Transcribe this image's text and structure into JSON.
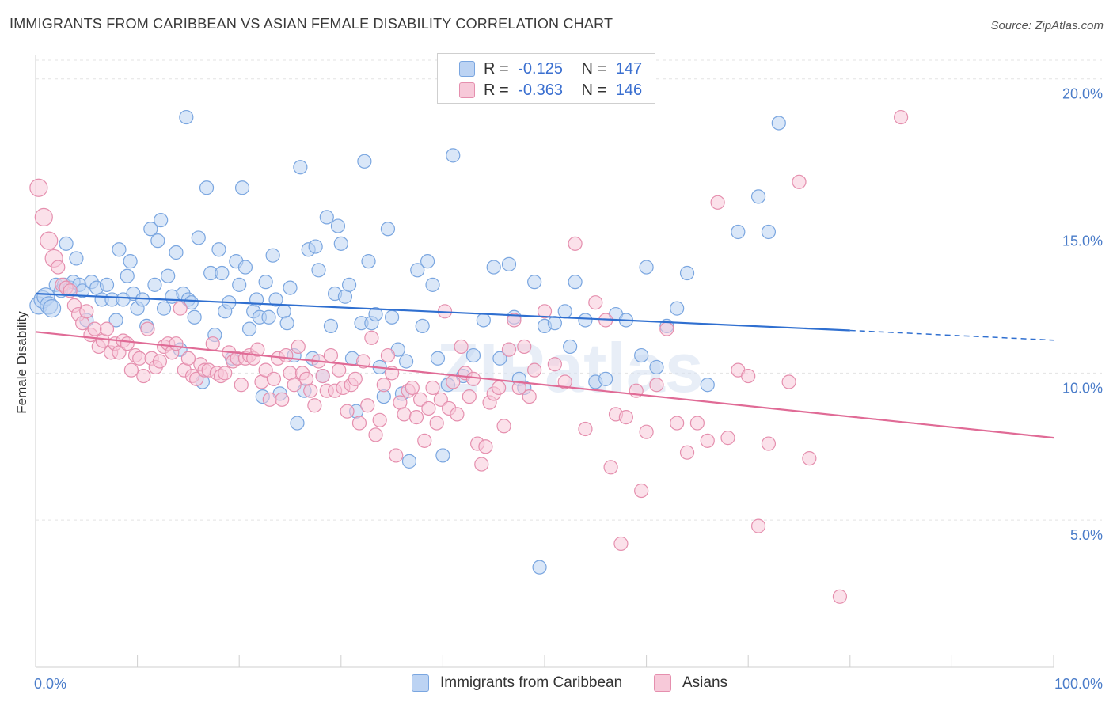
{
  "title": "IMMIGRANTS FROM CARIBBEAN VS ASIAN FEMALE DISABILITY CORRELATION CHART",
  "source": "Source: ZipAtlas.com",
  "watermark": "ZIPatlas",
  "legend": {
    "r_label": "R =",
    "n_label": "N =",
    "series": [
      {
        "name": "Immigrants from Caribbean",
        "r": "-0.125",
        "n": "147",
        "color": "#7aa6e0",
        "fill": "#bcd3f3",
        "line": "#2f6fd0"
      },
      {
        "name": "Asians",
        "r": "-0.363",
        "n": "146",
        "color": "#e58fae",
        "fill": "#f7c9d9",
        "line": "#e06b96"
      }
    ]
  },
  "chart_data": {
    "type": "scatter",
    "xlabel": "",
    "ylabel": "Female Disability",
    "xlim": [
      0,
      100
    ],
    "ylim": [
      0,
      20.8
    ],
    "x_tick_labels": [
      "0.0%",
      "100.0%"
    ],
    "y_ticks": [
      5,
      10,
      15,
      20
    ],
    "y_tick_labels": [
      "5.0%",
      "10.0%",
      "15.0%",
      "20.0%"
    ],
    "grid": true,
    "trendlines": [
      {
        "series": "Immigrants from Caribbean",
        "x0": 0,
        "y0": 12.7,
        "x1": 80,
        "y1": 11.45,
        "dash_from": 80,
        "x_end": 100,
        "y_end": 11.12
      },
      {
        "series": "Asians",
        "x0": 0,
        "y0": 11.4,
        "x1": 100,
        "y1": 7.8
      }
    ],
    "series": [
      {
        "name": "Immigrants from Caribbean",
        "points": [
          [
            0.3,
            12.3
          ],
          [
            0.7,
            12.5
          ],
          [
            1,
            12.6
          ],
          [
            1.3,
            12.3
          ],
          [
            1.6,
            12.2
          ],
          [
            2,
            13
          ],
          [
            2.5,
            12.8
          ],
          [
            2.8,
            13
          ],
          [
            3,
            14.4
          ],
          [
            3.4,
            12.9
          ],
          [
            3.7,
            13.1
          ],
          [
            4,
            13.9
          ],
          [
            4.3,
            13
          ],
          [
            4.6,
            12.8
          ],
          [
            5,
            11.8
          ],
          [
            5.5,
            13.1
          ],
          [
            6,
            12.9
          ],
          [
            6.5,
            12.5
          ],
          [
            7,
            13
          ],
          [
            7.5,
            12.5
          ],
          [
            7.9,
            11.8
          ],
          [
            8.2,
            14.2
          ],
          [
            8.6,
            12.5
          ],
          [
            9,
            13.3
          ],
          [
            9.3,
            13.8
          ],
          [
            9.6,
            12.7
          ],
          [
            10,
            12.2
          ],
          [
            10.5,
            12.5
          ],
          [
            10.9,
            11.6
          ],
          [
            11.3,
            14.9
          ],
          [
            11.7,
            13
          ],
          [
            12,
            14.5
          ],
          [
            12.3,
            15.2
          ],
          [
            12.6,
            12.2
          ],
          [
            13,
            13.3
          ],
          [
            13.4,
            12.6
          ],
          [
            13.8,
            14.1
          ],
          [
            14.2,
            10.8
          ],
          [
            14.5,
            12.7
          ],
          [
            14.8,
            18.7
          ],
          [
            15,
            12.5
          ],
          [
            15.3,
            12.4
          ],
          [
            15.6,
            11.9
          ],
          [
            16,
            14.6
          ],
          [
            16.4,
            9.7
          ],
          [
            16.8,
            16.3
          ],
          [
            17.2,
            13.4
          ],
          [
            17.6,
            11.3
          ],
          [
            18,
            14.2
          ],
          [
            18.3,
            13.4
          ],
          [
            18.6,
            12.1
          ],
          [
            19,
            12.4
          ],
          [
            19.3,
            10.5
          ],
          [
            19.7,
            13.8
          ],
          [
            20,
            13
          ],
          [
            20.3,
            16.3
          ],
          [
            20.6,
            13.6
          ],
          [
            21,
            11.5
          ],
          [
            21.4,
            12.1
          ],
          [
            21.7,
            12.5
          ],
          [
            22,
            11.9
          ],
          [
            22.3,
            9.2
          ],
          [
            22.6,
            13.1
          ],
          [
            22.9,
            11.9
          ],
          [
            23.3,
            14
          ],
          [
            23.6,
            12.5
          ],
          [
            24,
            9.3
          ],
          [
            24.4,
            12.1
          ],
          [
            24.7,
            11.7
          ],
          [
            25,
            12.9
          ],
          [
            25.4,
            10.6
          ],
          [
            25.7,
            8.3
          ],
          [
            26,
            17
          ],
          [
            26.4,
            9.4
          ],
          [
            26.8,
            14.2
          ],
          [
            27.2,
            10.5
          ],
          [
            27.5,
            14.3
          ],
          [
            27.8,
            13.5
          ],
          [
            28.2,
            9.9
          ],
          [
            28.6,
            15.3
          ],
          [
            29,
            11.6
          ],
          [
            29.4,
            12.7
          ],
          [
            29.7,
            15
          ],
          [
            30,
            14.4
          ],
          [
            30.4,
            12.6
          ],
          [
            30.8,
            13
          ],
          [
            31.1,
            10.5
          ],
          [
            31.5,
            8.7
          ],
          [
            32,
            11.7
          ],
          [
            32.3,
            17.2
          ],
          [
            32.7,
            13.8
          ],
          [
            33,
            11.7
          ],
          [
            33.4,
            12
          ],
          [
            33.8,
            10.2
          ],
          [
            34.2,
            9.2
          ],
          [
            34.6,
            14.9
          ],
          [
            35,
            11.9
          ],
          [
            35.6,
            10.8
          ],
          [
            36,
            9.3
          ],
          [
            36.4,
            10.4
          ],
          [
            36.7,
            7
          ],
          [
            37.5,
            13.5
          ],
          [
            38,
            11.6
          ],
          [
            38.5,
            13.8
          ],
          [
            39,
            13
          ],
          [
            39.5,
            10.5
          ],
          [
            40,
            7.2
          ],
          [
            40.5,
            9.6
          ],
          [
            41,
            17.4
          ],
          [
            42,
            9.9
          ],
          [
            43,
            10.6
          ],
          [
            44,
            11.8
          ],
          [
            45,
            13.6
          ],
          [
            45.6,
            10.5
          ],
          [
            46.5,
            13.7
          ],
          [
            47,
            11.9
          ],
          [
            47.5,
            9.8
          ],
          [
            48,
            9.5
          ],
          [
            49,
            13.1
          ],
          [
            49.5,
            3.4
          ],
          [
            50,
            11.6
          ],
          [
            51,
            11.7
          ],
          [
            52,
            12.1
          ],
          [
            52.5,
            10.9
          ],
          [
            53,
            13.1
          ],
          [
            54,
            11.8
          ],
          [
            55,
            9.7
          ],
          [
            56,
            9.8
          ],
          [
            57,
            12
          ],
          [
            58,
            11.8
          ],
          [
            59.5,
            10.6
          ],
          [
            60,
            13.6
          ],
          [
            61,
            10.2
          ],
          [
            62,
            11.6
          ],
          [
            63,
            12.2
          ],
          [
            64,
            13.4
          ],
          [
            66,
            9.6
          ],
          [
            69,
            14.8
          ],
          [
            71,
            16
          ],
          [
            72,
            14.8
          ],
          [
            73,
            18.5
          ]
        ]
      },
      {
        "name": "Asians",
        "points": [
          [
            0.3,
            16.3
          ],
          [
            0.8,
            15.3
          ],
          [
            1.3,
            14.5
          ],
          [
            1.8,
            13.9
          ],
          [
            2.2,
            13.6
          ],
          [
            2.6,
            13
          ],
          [
            3,
            12.9
          ],
          [
            3.4,
            12.8
          ],
          [
            3.8,
            12.3
          ],
          [
            4.2,
            12
          ],
          [
            4.6,
            11.7
          ],
          [
            5,
            12.1
          ],
          [
            5.4,
            11.3
          ],
          [
            5.8,
            11.5
          ],
          [
            6.2,
            10.9
          ],
          [
            6.6,
            11.1
          ],
          [
            7,
            11.5
          ],
          [
            7.4,
            10.7
          ],
          [
            7.8,
            11
          ],
          [
            8.2,
            10.7
          ],
          [
            8.6,
            11.1
          ],
          [
            9,
            11
          ],
          [
            9.4,
            10.1
          ],
          [
            9.8,
            10.6
          ],
          [
            10.2,
            10.5
          ],
          [
            10.6,
            9.9
          ],
          [
            11,
            11.5
          ],
          [
            11.4,
            10.5
          ],
          [
            11.8,
            10.2
          ],
          [
            12.2,
            10.4
          ],
          [
            12.6,
            10.9
          ],
          [
            13,
            11
          ],
          [
            13.4,
            10.7
          ],
          [
            13.8,
            11
          ],
          [
            14.2,
            12.2
          ],
          [
            14.6,
            10.1
          ],
          [
            15,
            10.5
          ],
          [
            15.4,
            9.9
          ],
          [
            15.8,
            9.8
          ],
          [
            16.2,
            10.3
          ],
          [
            16.6,
            10.1
          ],
          [
            17,
            10.1
          ],
          [
            17.4,
            11
          ],
          [
            17.8,
            10
          ],
          [
            18.2,
            9.9
          ],
          [
            18.6,
            10
          ],
          [
            19,
            10.7
          ],
          [
            19.4,
            10.4
          ],
          [
            19.8,
            10.5
          ],
          [
            20.2,
            9.6
          ],
          [
            20.6,
            10.5
          ],
          [
            21,
            10.6
          ],
          [
            21.4,
            10.5
          ],
          [
            21.8,
            10.8
          ],
          [
            22.2,
            9.7
          ],
          [
            22.6,
            10.1
          ],
          [
            23,
            9.1
          ],
          [
            23.4,
            9.8
          ],
          [
            23.8,
            10.5
          ],
          [
            24.2,
            9.1
          ],
          [
            24.6,
            10.6
          ],
          [
            25,
            10
          ],
          [
            25.4,
            9.6
          ],
          [
            25.8,
            10.9
          ],
          [
            26.2,
            10
          ],
          [
            26.6,
            9.8
          ],
          [
            27,
            9.4
          ],
          [
            27.4,
            8.9
          ],
          [
            27.8,
            10.4
          ],
          [
            28.2,
            9.9
          ],
          [
            28.6,
            9.4
          ],
          [
            29,
            10.6
          ],
          [
            29.4,
            9.4
          ],
          [
            29.8,
            10.1
          ],
          [
            30.2,
            9.5
          ],
          [
            30.6,
            8.7
          ],
          [
            31,
            9.6
          ],
          [
            31.4,
            9.8
          ],
          [
            31.8,
            8.3
          ],
          [
            32.2,
            10.4
          ],
          [
            32.6,
            8.9
          ],
          [
            33,
            11.2
          ],
          [
            33.4,
            7.9
          ],
          [
            33.8,
            8.4
          ],
          [
            34.2,
            9.6
          ],
          [
            34.6,
            10.6
          ],
          [
            35,
            10
          ],
          [
            35.4,
            7.2
          ],
          [
            35.8,
            9
          ],
          [
            36.2,
            8.6
          ],
          [
            36.6,
            9.4
          ],
          [
            37,
            9.5
          ],
          [
            37.4,
            8.5
          ],
          [
            37.8,
            9.1
          ],
          [
            38.2,
            7.7
          ],
          [
            38.6,
            8.8
          ],
          [
            39,
            9.5
          ],
          [
            39.4,
            8.3
          ],
          [
            39.8,
            9.1
          ],
          [
            40.2,
            12.1
          ],
          [
            40.6,
            8.8
          ],
          [
            41,
            9.7
          ],
          [
            41.4,
            8.6
          ],
          [
            41.8,
            10.9
          ],
          [
            42.2,
            10
          ],
          [
            42.6,
            9.2
          ],
          [
            43,
            9.8
          ],
          [
            43.4,
            7.6
          ],
          [
            43.8,
            6.9
          ],
          [
            44.2,
            7.5
          ],
          [
            44.6,
            9
          ],
          [
            45,
            9.3
          ],
          [
            45.5,
            9.5
          ],
          [
            46,
            8.2
          ],
          [
            46.5,
            10.8
          ],
          [
            47,
            11.8
          ],
          [
            47.5,
            9.5
          ],
          [
            48,
            10.9
          ],
          [
            48.5,
            9.2
          ],
          [
            49,
            10.1
          ],
          [
            50,
            12.1
          ],
          [
            51,
            10.3
          ],
          [
            52,
            9.7
          ],
          [
            53,
            14.4
          ],
          [
            54,
            8.1
          ],
          [
            55,
            12.4
          ],
          [
            56,
            11.8
          ],
          [
            57,
            8.6
          ],
          [
            58,
            8.5
          ],
          [
            59,
            9.4
          ],
          [
            60,
            8
          ],
          [
            61,
            9.6
          ],
          [
            62,
            11.5
          ],
          [
            63,
            8.3
          ],
          [
            64,
            7.3
          ],
          [
            65,
            8.3
          ],
          [
            66,
            7.7
          ],
          [
            67,
            15.8
          ],
          [
            68,
            7.8
          ],
          [
            69,
            10.1
          ],
          [
            70,
            9.9
          ],
          [
            71,
            4.8
          ],
          [
            72,
            7.6
          ],
          [
            74,
            9.7
          ],
          [
            75,
            16.5
          ],
          [
            76,
            7.1
          ],
          [
            79,
            2.4
          ],
          [
            85,
            18.7
          ],
          [
            57.5,
            4.2
          ],
          [
            56.5,
            6.8
          ],
          [
            59.5,
            6
          ]
        ]
      }
    ]
  }
}
